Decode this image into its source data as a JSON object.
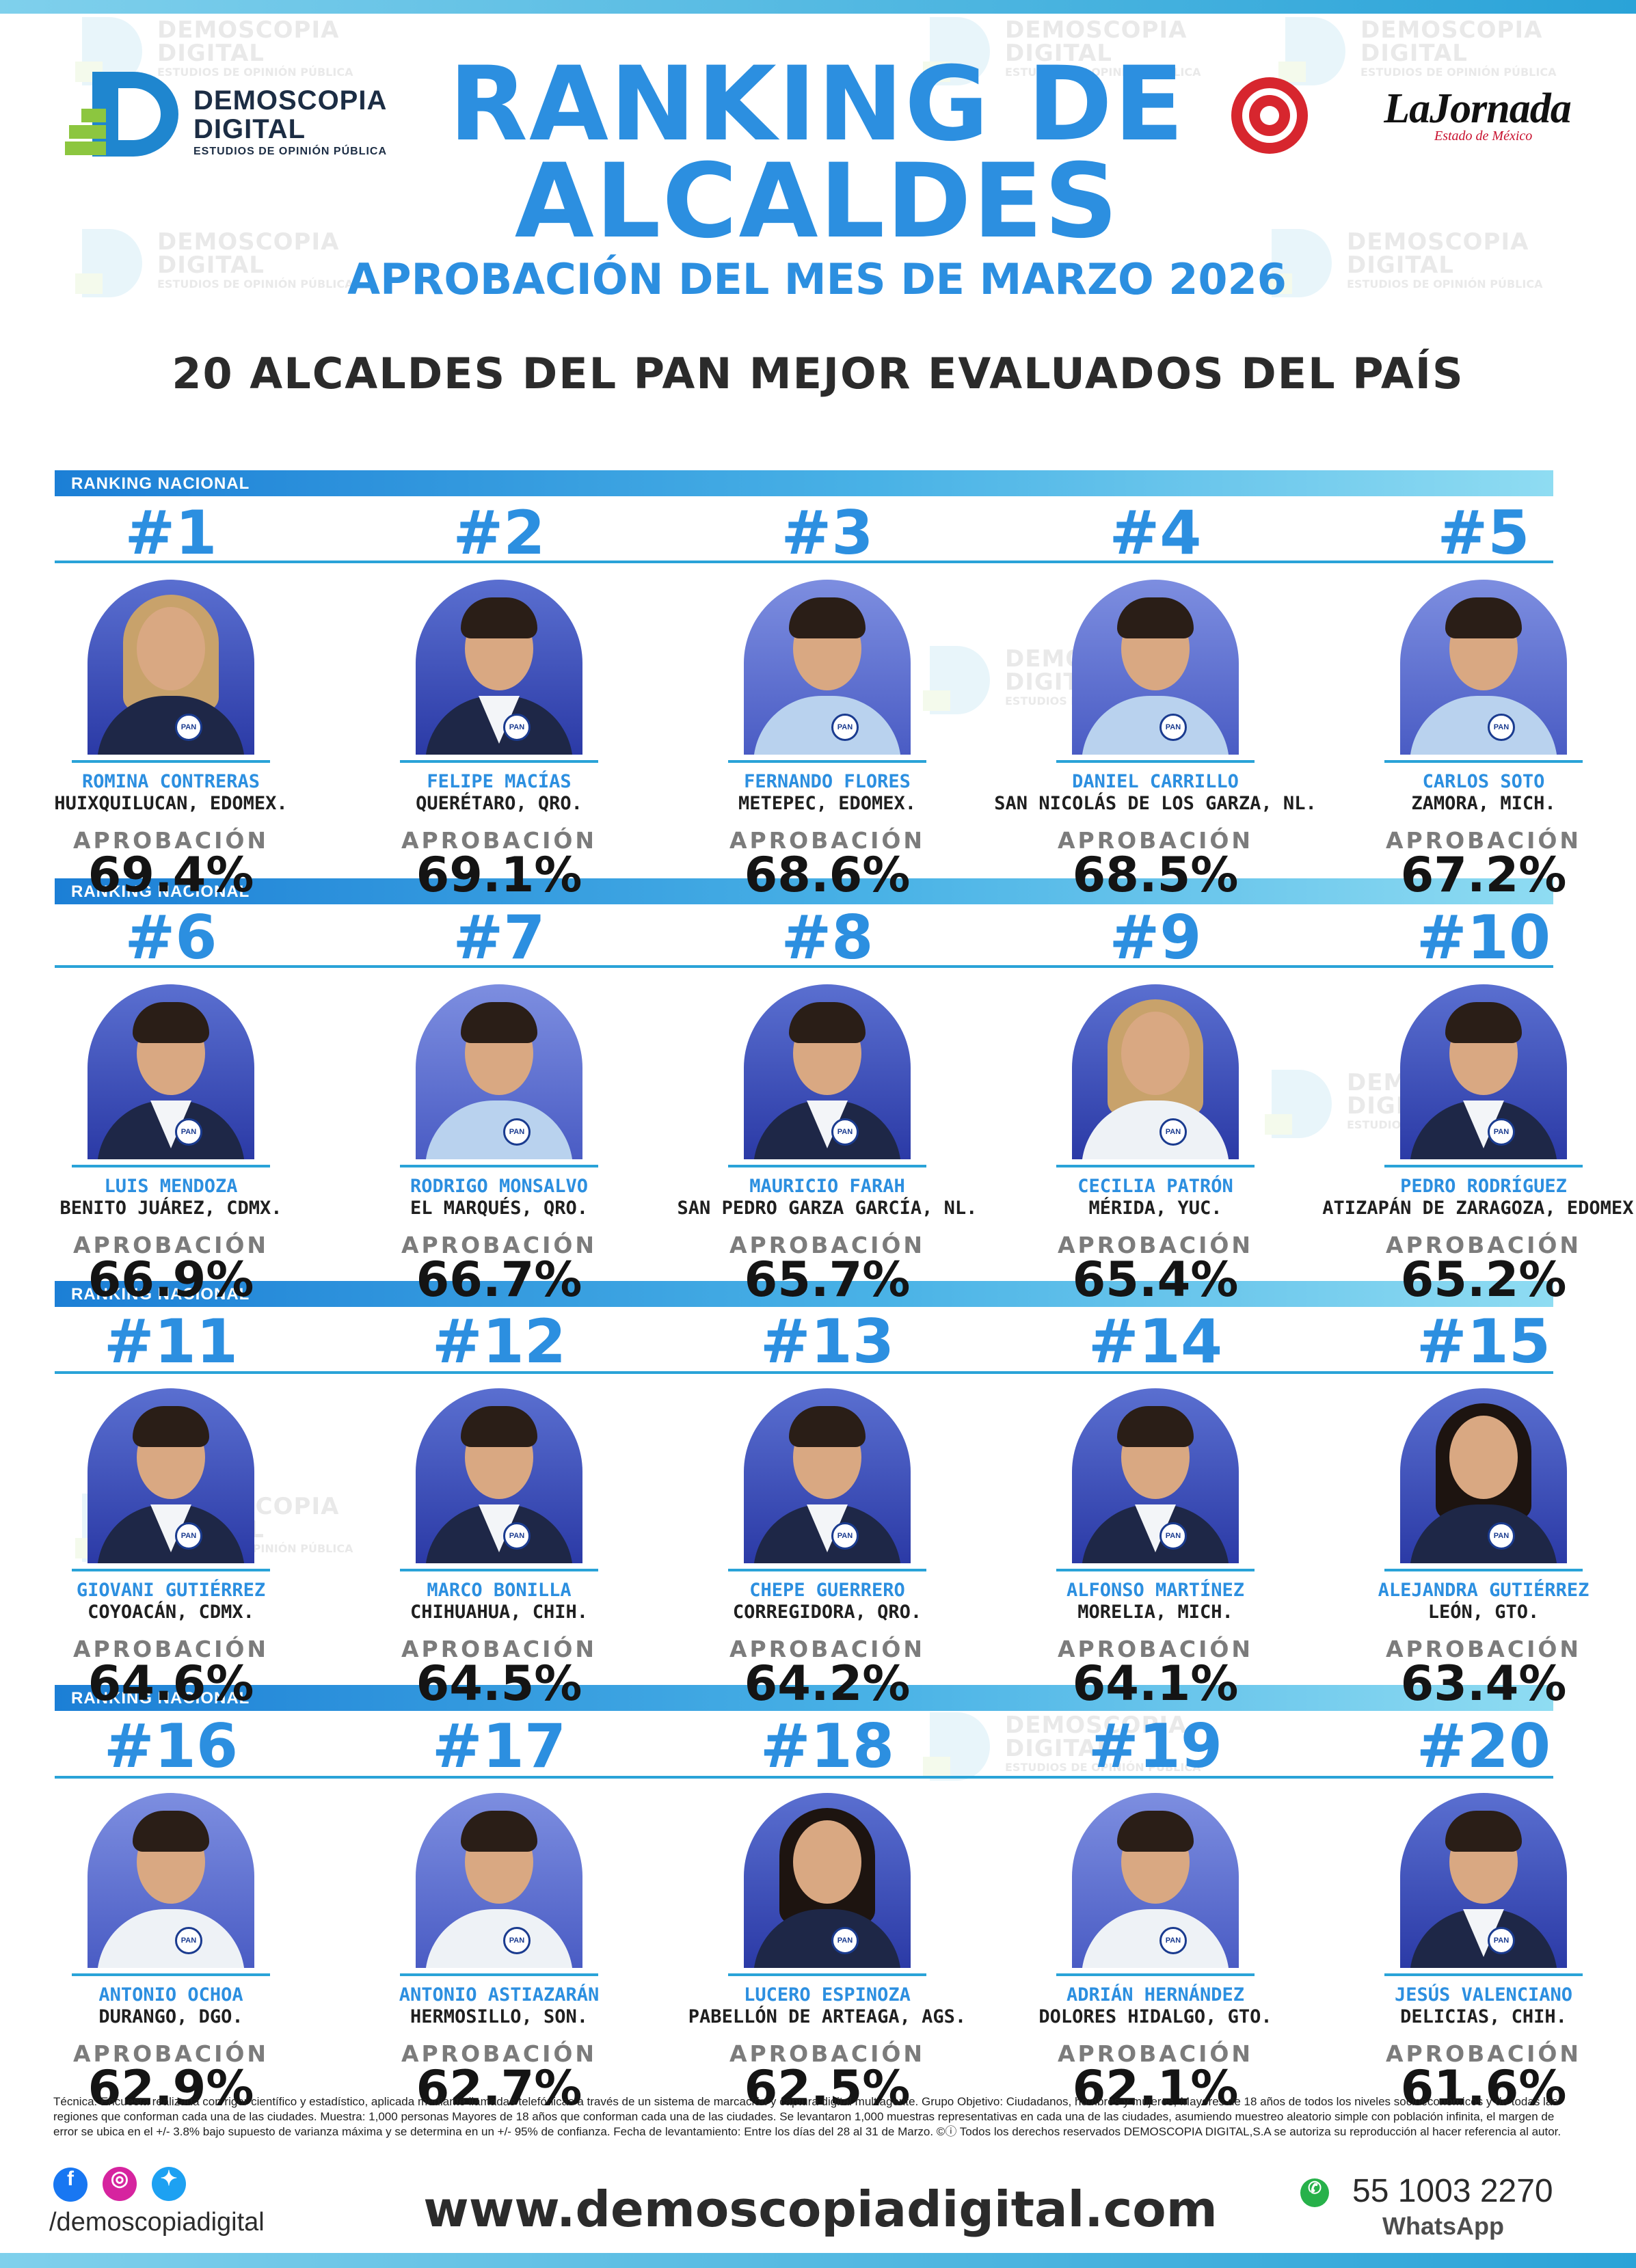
{
  "header": {
    "brand_line1": "DEMOSCOPIA",
    "brand_line2": "DIGITAL",
    "brand_tagline": "ESTUDIOS DE OPINIÓN PÚBLICA",
    "partner_name": "LaJornada",
    "partner_sub": "Estado de México",
    "title_line1": "RANKING DE",
    "title_line2": "ALCALDES",
    "subtitle": "APROBACIÓN DEL MES DE MARZO 2026",
    "headline": "20 ALCALDES DEL PAN MEJOR EVALUADOS DEL PAÍS"
  },
  "ranking_label": "RANKING NACIONAL",
  "approval_label": "APROBACIÓN",
  "party_badge": "PAN",
  "mayors": [
    {
      "rank": "#1",
      "name": "ROMINA CONTRERAS",
      "city": "HUIXQUILUCAN, EDOMEX.",
      "approval": "69.4%"
    },
    {
      "rank": "#2",
      "name": "FELIPE MACÍAS",
      "city": "QUERÉTARO, QRO.",
      "approval": "69.1%"
    },
    {
      "rank": "#3",
      "name": "FERNANDO FLORES",
      "city": "METEPEC, EDOMEX.",
      "approval": "68.6%"
    },
    {
      "rank": "#4",
      "name": "DANIEL CARRILLO",
      "city": "SAN NICOLÁS DE LOS GARZA, NL.",
      "approval": "68.5%"
    },
    {
      "rank": "#5",
      "name": "CARLOS SOTO",
      "city": "ZAMORA, MICH.",
      "approval": "67.2%"
    },
    {
      "rank": "#6",
      "name": "LUIS MENDOZA",
      "city": "BENITO JUÁREZ, CDMX.",
      "approval": "66.9%"
    },
    {
      "rank": "#7",
      "name": "RODRIGO MONSALVO",
      "city": "EL MARQUÉS, QRO.",
      "approval": "66.7%"
    },
    {
      "rank": "#8",
      "name": "MAURICIO FARAH",
      "city": "SAN PEDRO GARZA GARCÍA, NL.",
      "approval": "65.7%"
    },
    {
      "rank": "#9",
      "name": "CECILIA PATRÓN",
      "city": "MÉRIDA, YUC.",
      "approval": "65.4%"
    },
    {
      "rank": "#10",
      "name": "PEDRO RODRÍGUEZ",
      "city": "ATIZAPÁN DE ZARAGOZA, EDOMEX.",
      "approval": "65.2%"
    },
    {
      "rank": "#11",
      "name": "GIOVANI GUTIÉRREZ",
      "city": "COYOACÁN, CDMX.",
      "approval": "64.6%"
    },
    {
      "rank": "#12",
      "name": "MARCO BONILLA",
      "city": "CHIHUAHUA, CHIH.",
      "approval": "64.5%"
    },
    {
      "rank": "#13",
      "name": "CHEPE GUERRERO",
      "city": "CORREGIDORA, QRO.",
      "approval": "64.2%"
    },
    {
      "rank": "#14",
      "name": "ALFONSO MARTÍNEZ",
      "city": "MORELIA, MICH.",
      "approval": "64.1%"
    },
    {
      "rank": "#15",
      "name": "ALEJANDRA GUTIÉRREZ",
      "city": "LEÓN, GTO.",
      "approval": "63.4%"
    },
    {
      "rank": "#16",
      "name": "ANTONIO OCHOA",
      "city": "DURANGO, DGO.",
      "approval": "62.9%"
    },
    {
      "rank": "#17",
      "name": "ANTONIO ASTIAZARÁN",
      "city": "HERMOSILLO, SON.",
      "approval": "62.7%"
    },
    {
      "rank": "#18",
      "name": "LUCERO ESPINOZA",
      "city": "PABELLÓN DE ARTEAGA, AGS.",
      "approval": "62.5%"
    },
    {
      "rank": "#19",
      "name": "ADRIÁN HERNÁNDEZ",
      "city": "DOLORES HIDALGO, GTO.",
      "approval": "62.1%"
    },
    {
      "rank": "#20",
      "name": "JESÚS VALENCIANO",
      "city": "DELICIAS, CHIH.",
      "approval": "61.6%"
    }
  ],
  "footer": {
    "methodology": "Técnica: Encuesta realizada con rigor científico y estadístico, aplicada mediante llamadas telefónicas a través de un sistema de marcación y captura digital multiagente. Grupo Objetivo: Ciudadanos, hombres y mujeres, Mayores de 18 años de todos los niveles socioeconómicos y de todas las regiones que conforman cada una de las ciudades. Muestra: 1,000 personas Mayores de 18 años que conforman cada una de las ciudades. Se levantaron 1,000 muestras representativas en cada una de las ciudades, asumiendo muestreo aleatorio simple con población infinita, el margen de error se ubica en el +/- 3.8% bajo supuesto de varianza máxima y se determina en un +/- 95% de confianza. Fecha de levantamiento: Entre los días del 28 al 31 de Marzo. ©ⓘ Todos los derechos reservados DEMOSCOPIA DIGITAL,S.A se autoriza su reproducción al hacer referencia al autor.",
    "social_handle": "/demoscopiadigital",
    "website": "www.demoscopiadigital.com",
    "phone": "55 1003 2270",
    "whatsapp_label": "WhatsApp"
  }
}
